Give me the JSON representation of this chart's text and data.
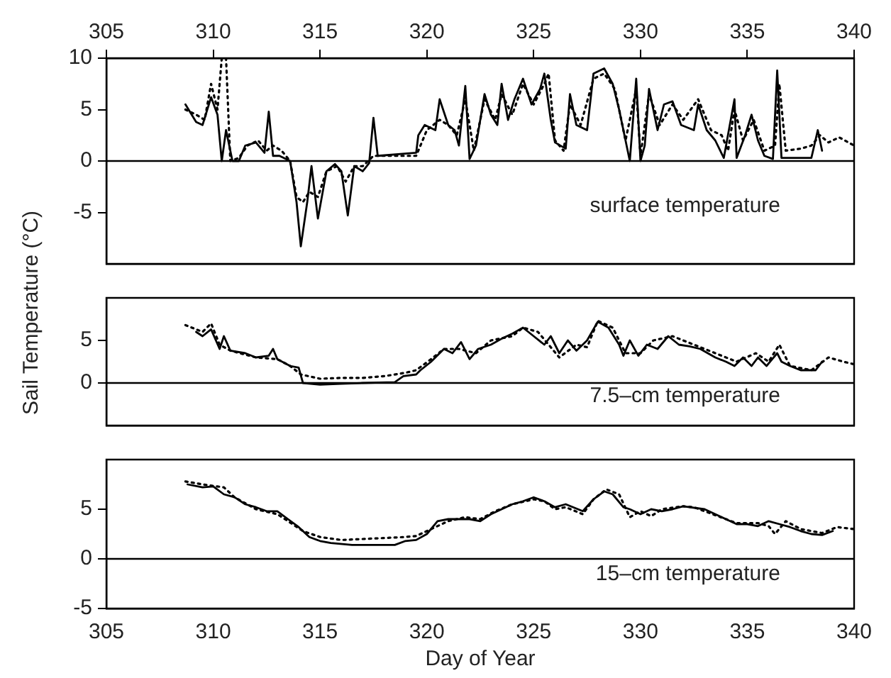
{
  "chart_data": [
    {
      "type": "line",
      "xlim": [
        305,
        340
      ],
      "x2lim": [
        305,
        340
      ],
      "x2ticks": [
        305,
        310,
        315,
        320,
        325,
        330,
        335,
        340
      ],
      "ylim": [
        -10,
        10
      ],
      "yticks": [
        -5,
        0,
        5,
        10
      ],
      "tick_labels": "y",
      "grid": false,
      "legend": false,
      "marker": "none",
      "annotations": [
        "surface temperature"
      ],
      "ref_lines": [
        {
          "axis": "y",
          "value": 0
        }
      ],
      "series": [
        {
          "color": "#000000",
          "line_style": "solid",
          "x": [
            308.7,
            309.2,
            309.5,
            309.9,
            310.2,
            310.4,
            310.6,
            310.9,
            311.2,
            311.5,
            312,
            312.4,
            312.6,
            312.8,
            313.1,
            313.6,
            313.9,
            314.1,
            314.4,
            314.6,
            314.9,
            315.3,
            315.7,
            316,
            316.3,
            316.6,
            317,
            317.3,
            317.5,
            317.7,
            319.5,
            319.6,
            319.9,
            320.4,
            320.6,
            321,
            321.3,
            321.5,
            321.8,
            322,
            322.3,
            322.7,
            323,
            323.3,
            323.5,
            323.8,
            324.1,
            324.5,
            324.9,
            325.3,
            325.5,
            325.8,
            326,
            326.5,
            326.7,
            327,
            327.5,
            327.8,
            328.3,
            328.7,
            329,
            329.3,
            329.5,
            329.8,
            330,
            330.2,
            330.4,
            330.8,
            331.1,
            331.5,
            331.9,
            332.5,
            332.7,
            333.1,
            333.5,
            333.9,
            334.4,
            334.5,
            334.9,
            335.2,
            335.5,
            335.8,
            336.2,
            336.4,
            336.6,
            338,
            338.3,
            338.5
          ],
          "values": [
            5.5,
            3.8,
            3.5,
            6.2,
            4.5,
            0,
            3,
            0,
            0,
            1.5,
            1.8,
            0.8,
            4.8,
            0.5,
            0.5,
            0,
            -4,
            -8.3,
            -4,
            -0.5,
            -5.6,
            -1,
            -0.3,
            -1,
            -5.3,
            -0.5,
            -1,
            -0.2,
            4.2,
            0.5,
            0.8,
            2.5,
            3.5,
            3,
            6,
            3.5,
            3,
            1.5,
            7.3,
            0.2,
            1.5,
            6.5,
            4.5,
            3.5,
            7.5,
            4,
            6,
            8,
            5.5,
            7,
            8.5,
            4,
            1.8,
            1.2,
            6.5,
            3.5,
            3,
            8.5,
            9,
            7.5,
            5,
            2,
            0,
            8,
            0,
            1.5,
            7,
            3,
            5.5,
            5.8,
            3.5,
            3,
            5.5,
            3,
            2,
            0.3,
            6,
            0.3,
            2.5,
            4.5,
            2,
            0.5,
            0.2,
            8.8,
            0.3,
            0.3,
            3,
            1
          ]
        },
        {
          "color": "#000000",
          "line_style": "dotted",
          "x": [
            308.7,
            309.2,
            309.6,
            309.9,
            310.2,
            310.4,
            310.6,
            310.8,
            311.2,
            311.6,
            312.1,
            312.5,
            312.8,
            313.2,
            313.6,
            313.9,
            314.2,
            314.5,
            314.9,
            315.3,
            315.8,
            316.2,
            316.6,
            317,
            317.5,
            318.5,
            319.5,
            320,
            320.6,
            321,
            321.4,
            321.8,
            322.2,
            322.7,
            323.2,
            323.5,
            324,
            324.5,
            325,
            325.5,
            325.7,
            326,
            326.4,
            326.7,
            327.2,
            327.8,
            328.3,
            328.8,
            329.3,
            329.8,
            330,
            330.4,
            330.9,
            331.5,
            332,
            332.7,
            333.3,
            333.8,
            334.1,
            334.4,
            334.8,
            335.3,
            335.8,
            336.3,
            336.5,
            336.8,
            337.5,
            338,
            338.4,
            338.8,
            339.3,
            340
          ],
          "values": [
            5,
            4.5,
            4,
            7.5,
            5,
            10,
            10,
            0,
            0.3,
            1.5,
            2,
            1,
            1.5,
            1,
            0,
            -3.5,
            -4,
            -3,
            -3.5,
            -1,
            -0.5,
            -2,
            -0.5,
            -0.5,
            0.5,
            0.5,
            0.5,
            3,
            4,
            3.5,
            2.5,
            6,
            1,
            6,
            4,
            6.5,
            4.5,
            7.5,
            5.5,
            7.5,
            8.5,
            2,
            1,
            5.5,
            3.5,
            8,
            8.5,
            7,
            2,
            7,
            0.5,
            6.5,
            3.5,
            5.5,
            4,
            6,
            3,
            2.5,
            1,
            5,
            2,
            4,
            1,
            1.5,
            7.5,
            1,
            1.2,
            1.5,
            2.5,
            1.8,
            2.3,
            1.5
          ]
        }
      ]
    },
    {
      "type": "line",
      "xlim": [
        305,
        340
      ],
      "ylim": [
        -5,
        10
      ],
      "yticks": [
        0,
        5
      ],
      "tick_labels": "y",
      "grid": false,
      "legend": false,
      "marker": "none",
      "ylabel": "Sail Temperature (°C)",
      "annotations": [
        "7.5–cm temperature"
      ],
      "ref_lines": [
        {
          "axis": "y",
          "value": 0
        }
      ],
      "series": [
        {
          "color": "#000000",
          "line_style": "solid",
          "x": [
            309.2,
            309.5,
            309.9,
            310.3,
            310.5,
            310.8,
            311.5,
            312,
            312.6,
            312.8,
            313,
            313.6,
            314,
            314.2,
            315,
            316,
            317,
            318.5,
            318.9,
            319.5,
            319.7,
            320.2,
            320.8,
            321.2,
            321.6,
            322,
            322.4,
            323,
            323.5,
            324,
            324.5,
            325,
            325.5,
            325.8,
            326.2,
            326.6,
            327,
            327.5,
            328,
            328.5,
            329,
            329.2,
            329.5,
            329.9,
            330.3,
            330.8,
            331.3,
            331.8,
            332.3,
            332.8,
            333.5,
            334,
            334.4,
            334.8,
            335.2,
            335.5,
            335.9,
            336.4,
            336.6,
            337,
            337.5,
            338.2,
            338.5
          ],
          "values": [
            6,
            5.5,
            6.3,
            4,
            5.5,
            3.8,
            3.5,
            3,
            3.2,
            4,
            2.8,
            2,
            1.8,
            0,
            -0.2,
            -0.1,
            0,
            0.1,
            0.8,
            1,
            1.5,
            2.5,
            4,
            3.5,
            4.8,
            2.8,
            4,
            4.5,
            5.2,
            5.8,
            6.5,
            5.5,
            4.5,
            5.5,
            3.5,
            5,
            3.8,
            5,
            7.2,
            6.5,
            4.5,
            3.2,
            5,
            3.2,
            4.5,
            4,
            5.5,
            4.5,
            4.3,
            4,
            3,
            2.5,
            2,
            3,
            2,
            3,
            2,
            3.5,
            2.5,
            2,
            1.5,
            1.5,
            2.5
          ]
        },
        {
          "color": "#000000",
          "line_style": "dotted",
          "x": [
            308.7,
            309.5,
            309.9,
            310.3,
            310.8,
            312,
            313,
            313.6,
            314.1,
            315,
            316,
            317,
            318,
            319,
            319.5,
            320.2,
            320.8,
            321.5,
            322.3,
            323,
            324,
            324.5,
            325.2,
            326.2,
            327,
            327.5,
            328,
            328.7,
            329.3,
            330,
            330.6,
            331.5,
            332.5,
            333.5,
            334.5,
            335.4,
            336,
            336.5,
            337,
            338,
            338.8,
            339.5,
            340
          ],
          "values": [
            6.8,
            6,
            7,
            4.5,
            3.8,
            3,
            2.8,
            2,
            1,
            0.5,
            0.6,
            0.6,
            0.8,
            1.2,
            1.5,
            2.8,
            4,
            4,
            3.5,
            5,
            5.5,
            6.5,
            6,
            3,
            4.5,
            4.2,
            7.3,
            6.5,
            3.5,
            3.5,
            5,
            5.5,
            4.5,
            3.5,
            2.5,
            3.5,
            2.5,
            4.5,
            2,
            1.5,
            3,
            2.5,
            2.2
          ]
        }
      ]
    },
    {
      "type": "line",
      "xlim": [
        305,
        340
      ],
      "xticks": [
        305,
        310,
        315,
        320,
        325,
        330,
        335,
        340
      ],
      "ylim": [
        -5,
        10
      ],
      "yticks": [
        -5,
        0,
        5
      ],
      "xlabel": "Day of Year",
      "grid": false,
      "legend": false,
      "marker": "none",
      "annotations": [
        "15–cm temperature"
      ],
      "ref_lines": [
        {
          "axis": "y",
          "value": 0
        }
      ],
      "series": [
        {
          "color": "#000000",
          "line_style": "solid",
          "x": [
            308.8,
            309.5,
            310,
            310.5,
            311,
            311.5,
            312,
            312.5,
            313,
            313.5,
            314,
            314.5,
            315,
            315.5,
            316.5,
            318.5,
            319,
            319.5,
            320,
            320.5,
            321,
            321.5,
            322,
            322.5,
            323,
            323.5,
            324,
            324.5,
            325,
            325.5,
            326,
            326.5,
            327.3,
            327.8,
            328.3,
            328.7,
            329.2,
            329.5,
            330,
            330.5,
            331,
            331.5,
            332,
            333,
            333.5,
            334,
            334.5,
            335,
            335.5,
            336,
            336.5,
            337,
            337.5,
            338,
            338.5,
            339
          ],
          "values": [
            7.5,
            7.2,
            7.3,
            6.5,
            6.2,
            5.5,
            5.2,
            4.8,
            4.8,
            4,
            3.2,
            2.2,
            1.8,
            1.6,
            1.4,
            1.4,
            1.8,
            1.9,
            2.5,
            3.8,
            4,
            4,
            4,
            3.8,
            4.5,
            5,
            5.5,
            5.8,
            6.2,
            5.8,
            5.2,
            5.5,
            4.8,
            6,
            6.8,
            6.5,
            5.2,
            5,
            4.5,
            5,
            4.8,
            5,
            5.3,
            5,
            4.5,
            4,
            3.5,
            3.5,
            3.3,
            3.8,
            3.5,
            3.2,
            2.8,
            2.5,
            2.4,
            2.8
          ]
        },
        {
          "color": "#000000",
          "line_style": "dotted",
          "x": [
            308.7,
            309.5,
            310.5,
            311,
            312,
            313,
            313.5,
            314.2,
            315,
            316,
            317,
            318,
            319,
            319.5,
            320.2,
            321,
            321.8,
            322.5,
            323.2,
            324,
            325,
            325.5,
            326,
            326.5,
            327.3,
            327.8,
            328.4,
            329,
            329.5,
            330,
            330.5,
            331,
            332,
            332.5,
            333.5,
            334.5,
            335.5,
            336,
            336.3,
            336.8,
            337.5,
            338.5,
            339.2,
            340
          ],
          "values": [
            7.8,
            7.5,
            7.2,
            6.2,
            5,
            4.5,
            3.8,
            2.8,
            2.2,
            1.9,
            2,
            2.1,
            2.2,
            2.3,
            3,
            3.8,
            4.2,
            4,
            4.8,
            5.5,
            6,
            5.8,
            5,
            5.2,
            4.5,
            6,
            7,
            6.5,
            4.2,
            4.8,
            4.3,
            5,
            5.3,
            5.2,
            4.4,
            3.6,
            3.6,
            3.3,
            2.5,
            3.8,
            3,
            2.6,
            3.2,
            3
          ]
        }
      ]
    }
  ]
}
